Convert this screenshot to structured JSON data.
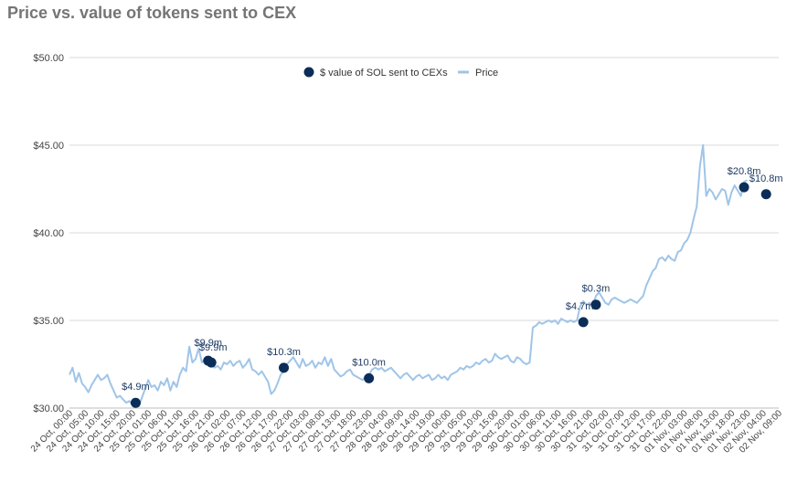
{
  "title": "Price vs. value of tokens sent to CEX",
  "colors": {
    "price_line": "#9fc5e8",
    "dots": "#0b2d57",
    "grid": "#d9d9d9",
    "title": "#757575"
  },
  "chart_data": {
    "type": "line",
    "title": "Price vs. value of tokens sent to CEX",
    "ylim": [
      30,
      50
    ],
    "y_ticks": [
      "$30.00",
      "$35.00",
      "$40.00",
      "$45.00",
      "$50.00"
    ],
    "grid": true,
    "legend_position": "top-center",
    "legend": [
      "$ value of SOL sent to CEXs",
      "Price"
    ],
    "x_ticks": [
      "24 Oct, 00:00",
      "24 Oct, 05:00",
      "24 Oct, 10:00",
      "24 Oct, 15:00",
      "24 Oct, 20:00",
      "25 Oct, 01:00",
      "25 Oct, 06:00",
      "25 Oct, 11:00",
      "25 Oct, 16:00",
      "25 Oct, 21:00",
      "26 Oct, 02:00",
      "26 Oct, 07:00",
      "26 Oct, 12:00",
      "26 Oct, 17:00",
      "26 Oct, 22:00",
      "27 Oct, 03:00",
      "27 Oct, 08:00",
      "27 Oct, 13:00",
      "27 Oct, 18:00",
      "27 Oct, 23:00",
      "28 Oct, 04:00",
      "28 Oct, 09:00",
      "28 Oct, 14:00",
      "28 Oct, 19:00",
      "29 Oct, 00:00",
      "29 Oct, 05:00",
      "29 Oct, 10:00",
      "29 Oct, 15:00",
      "29 Oct, 20:00",
      "30 Oct, 01:00",
      "30 Oct, 06:00",
      "30 Oct, 11:00",
      "30 Oct, 16:00",
      "30 Oct, 21:00",
      "31 Oct, 02:00",
      "31 Oct, 07:00",
      "31 Oct, 12:00",
      "31 Oct, 17:00",
      "31 Oct, 22:00",
      "01 Nov, 03:00",
      "01 Nov, 08:00",
      "01 Nov, 13:00",
      "01 Nov, 18:00",
      "01 Nov, 23:00",
      "02 Nov, 04:00",
      "02 Nov, 09:00"
    ],
    "series": [
      {
        "name": "Price",
        "x_start": "24 Oct, 00:00",
        "step_hours": 1,
        "values": [
          31.9,
          32.3,
          31.5,
          32.0,
          31.4,
          31.2,
          30.9,
          31.3,
          31.6,
          31.9,
          31.6,
          31.7,
          31.9,
          31.4,
          31.0,
          30.6,
          30.7,
          30.5,
          30.3,
          30.4,
          30.2,
          30.5,
          30.1,
          30.6,
          31.1,
          31.6,
          31.2,
          31.3,
          31.0,
          31.5,
          31.3,
          31.7,
          31.0,
          31.5,
          31.2,
          31.9,
          32.3,
          32.1,
          33.5,
          32.6,
          32.8,
          33.4,
          32.6,
          32.8,
          32.7,
          32.6,
          32.3,
          32.4,
          32.2,
          32.6,
          32.5,
          32.7,
          32.4,
          32.6,
          32.7,
          32.3,
          32.5,
          32.8,
          32.2,
          32.1,
          31.9,
          32.1,
          31.8,
          31.5,
          30.8,
          31.0,
          31.4,
          31.9,
          32.1,
          32.5,
          32.7,
          32.9,
          32.6,
          32.3,
          32.8,
          32.4,
          32.5,
          32.7,
          32.3,
          32.6,
          32.5,
          32.9,
          32.4,
          32.8,
          32.2,
          32.0,
          31.8,
          31.9,
          32.1,
          32.2,
          31.9,
          31.8,
          31.7,
          31.6,
          31.8,
          31.9,
          32.2,
          32.3,
          32.2,
          32.3,
          32.1,
          32.2,
          32.3,
          32.1,
          31.9,
          31.7,
          31.9,
          32.0,
          31.8,
          31.6,
          31.8,
          31.9,
          31.7,
          31.8,
          31.9,
          31.6,
          31.7,
          31.9,
          31.7,
          31.8,
          31.6,
          31.9,
          32.0,
          32.1,
          32.3,
          32.2,
          32.4,
          32.3,
          32.4,
          32.6,
          32.5,
          32.7,
          32.8,
          32.6,
          32.7,
          33.1,
          32.9,
          32.8,
          32.9,
          33.0,
          32.7,
          32.6,
          32.9,
          32.8,
          32.6,
          32.5,
          32.6,
          34.6,
          34.7,
          34.9,
          34.8,
          34.9,
          35.0,
          34.9,
          35.0,
          34.8,
          35.1,
          35.0,
          34.9,
          35.0,
          34.9,
          35.0,
          35.8,
          36.1,
          35.9,
          36.0,
          35.8,
          36.4,
          36.6,
          36.3,
          36.0,
          35.9,
          36.2,
          36.3,
          36.2,
          36.1,
          36.0,
          36.1,
          36.2,
          36.1,
          36.0,
          36.2,
          36.4,
          37.0,
          37.4,
          37.8,
          38.0,
          38.5,
          38.6,
          38.4,
          38.7,
          38.5,
          38.4,
          38.9,
          39.0,
          39.4,
          39.6,
          40.0,
          40.8,
          41.5,
          43.8,
          45.0,
          42.1,
          42.5,
          42.3,
          41.9,
          42.2,
          42.5,
          42.4,
          41.6,
          42.3,
          42.7,
          42.4,
          42.1,
          42.9,
          43.0
        ]
      },
      {
        "name": "$ value of SOL sent to CEXs",
        "points": [
          {
            "x": "24 Oct, 21:00",
            "y": 30.3,
            "label": "$4.9m"
          },
          {
            "x": "25 Oct, 20:00",
            "y": 32.7,
            "label": "$9.9m"
          },
          {
            "x": "25 Oct, 21:00",
            "y": 32.6,
            "label": "$9.9m"
          },
          {
            "x": "26 Oct, 20:00",
            "y": 32.3,
            "label": "$10.3m"
          },
          {
            "x": "27 Oct, 23:00",
            "y": 31.7,
            "label": "$10.0m"
          },
          {
            "x": "30 Oct, 19:00",
            "y": 34.9,
            "label": "$4.7m"
          },
          {
            "x": "30 Oct, 23:00",
            "y": 35.9,
            "label": "$0.3m"
          },
          {
            "x": "01 Nov, 22:00",
            "y": 42.6,
            "label": "$20.8m"
          },
          {
            "x": "02 Nov, 05:00",
            "y": 42.2,
            "label": "$10.8m"
          }
        ]
      }
    ]
  }
}
